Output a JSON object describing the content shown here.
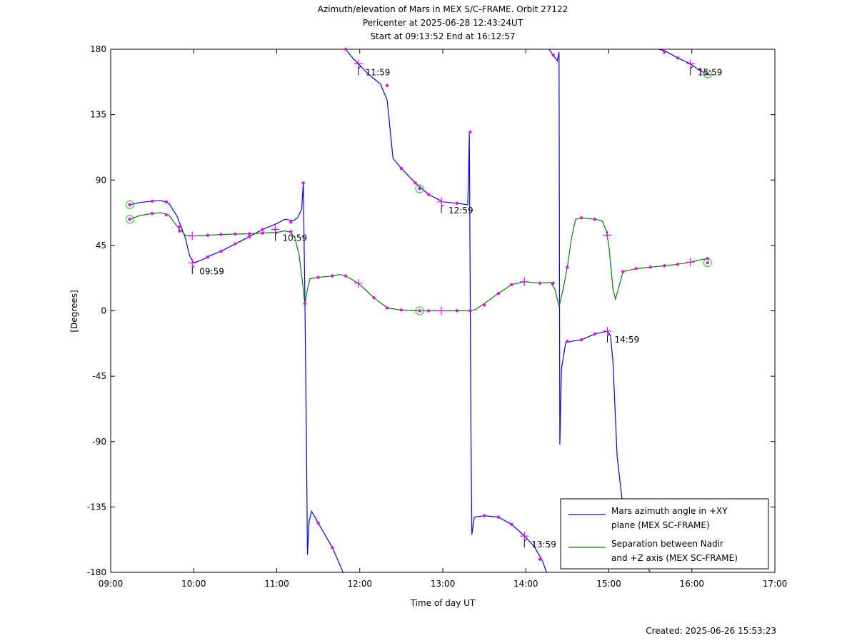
{
  "chart_data": {
    "type": "line",
    "title": [
      "Azimuth/elevation of Mars in MEX S/C-FRAME.  Orbit 27122",
      "Pericenter at 2025-06-28 12:43:24UT",
      "Start at 09:13:52 End at 16:12:57"
    ],
    "xlabel": "Time of day UT",
    "ylabel": "[Degrees]",
    "xlim": [
      9.0,
      17.0
    ],
    "ylim": [
      -180,
      180
    ],
    "x_ticks": [
      9,
      10,
      11,
      12,
      13,
      14,
      15,
      16,
      17
    ],
    "x_tick_labels": [
      "09:00",
      "10:00",
      "11:00",
      "12:00",
      "13:00",
      "14:00",
      "15:00",
      "16:00",
      "17:00"
    ],
    "y_ticks": [
      180,
      135,
      90,
      45,
      0,
      -45,
      -90,
      -135,
      -180
    ],
    "y_tick_labels": [
      "180",
      "135",
      "90",
      "45",
      "0",
      "-45",
      "-90",
      "-135",
      "-180"
    ],
    "grid": false,
    "legend_position": "bottom-right",
    "series": [
      {
        "name": "Mars azimuth angle in +XY plane (MEX SC-FRAME)",
        "legend_lines": [
          "Mars azimuth angle in +XY",
          "plane (MEX SC-FRAME)"
        ],
        "color": "#0000ff",
        "segments": [
          [
            [
              9.23,
              73
            ],
            [
              9.35,
              74.5
            ],
            [
              9.5,
              75.5
            ],
            [
              9.6,
              76
            ],
            [
              9.7,
              74
            ],
            [
              9.8,
              65
            ],
            [
              9.9,
              50
            ],
            [
              9.95,
              38
            ],
            [
              10.0,
              33
            ],
            [
              10.1,
              35
            ],
            [
              10.2,
              38
            ],
            [
              10.33,
              41
            ],
            [
              10.5,
              46
            ],
            [
              10.67,
              51
            ],
            [
              10.83,
              56
            ],
            [
              11.0,
              60
            ],
            [
              11.1,
              63
            ],
            [
              11.2,
              62
            ],
            [
              11.25,
              64
            ],
            [
              11.3,
              70
            ],
            [
              11.32,
              88
            ],
            [
              11.34,
              5
            ],
            [
              11.36,
              -100
            ],
            [
              11.37,
              -168
            ],
            [
              11.39,
              -145
            ],
            [
              11.42,
              -138
            ],
            [
              11.5,
              -146
            ],
            [
              11.67,
              -163
            ],
            [
              11.8,
              -180
            ]
          ],
          [
            [
              11.83,
              180
            ],
            [
              11.9,
              175
            ],
            [
              11.983,
              170
            ],
            [
              12.1,
              163
            ],
            [
              12.25,
              156
            ],
            [
              12.33,
              145
            ],
            [
              12.4,
              105
            ],
            [
              12.5,
              98
            ],
            [
              12.67,
              88
            ],
            [
              12.83,
              80
            ],
            [
              13.0,
              75
            ],
            [
              13.17,
              74
            ],
            [
              13.3,
              73
            ],
            [
              13.31,
              90
            ],
            [
              13.32,
              123
            ],
            [
              13.34,
              -85
            ],
            [
              13.35,
              -154
            ],
            [
              13.38,
              -142
            ],
            [
              13.5,
              -141
            ],
            [
              13.67,
              -142
            ],
            [
              13.83,
              -147
            ],
            [
              13.983,
              -155
            ],
            [
              14.1,
              -162
            ],
            [
              14.2,
              -172
            ],
            [
              14.25,
              -180
            ]
          ],
          [
            [
              14.28,
              180
            ],
            [
              14.33,
              176
            ],
            [
              14.38,
              172
            ],
            [
              14.4,
              178
            ],
            [
              14.41,
              -92
            ],
            [
              14.43,
              -40
            ],
            [
              14.48,
              -22
            ],
            [
              14.55,
              -21
            ],
            [
              14.67,
              -20
            ],
            [
              14.83,
              -16
            ],
            [
              14.983,
              -14
            ],
            [
              15.02,
              -17
            ],
            [
              15.05,
              -35
            ],
            [
              15.1,
              -100
            ],
            [
              15.2,
              -150
            ],
            [
              15.5,
              -180
            ]
          ],
          [
            [
              15.6,
              180
            ],
            [
              15.67,
              179
            ],
            [
              15.83,
              174
            ],
            [
              15.983,
              170
            ],
            [
              16.1,
              165
            ],
            [
              16.19,
              163
            ]
          ]
        ]
      },
      {
        "name": "Separation between Nadir and +Z axis (MEX SC-FRAME)",
        "legend_lines": [
          "Separation between Nadir",
          "and +Z axis (MEX SC-FRAME)"
        ],
        "color": "#008000",
        "segments": [
          [
            [
              9.23,
              63
            ],
            [
              9.35,
              65.5
            ],
            [
              9.5,
              67
            ],
            [
              9.6,
              67.5
            ],
            [
              9.7,
              66
            ],
            [
              9.8,
              58
            ],
            [
              9.9,
              52
            ],
            [
              10.0,
              51.5
            ],
            [
              10.17,
              52
            ],
            [
              10.33,
              52.5
            ],
            [
              10.5,
              52.8
            ],
            [
              10.67,
              53
            ],
            [
              10.83,
              53.5
            ],
            [
              11.0,
              54
            ],
            [
              11.1,
              55
            ],
            [
              11.17,
              54
            ],
            [
              11.22,
              50
            ],
            [
              11.27,
              38
            ],
            [
              11.32,
              15
            ],
            [
              11.34,
              4
            ],
            [
              11.36,
              12
            ],
            [
              11.4,
              22
            ],
            [
              11.5,
              23
            ],
            [
              11.67,
              24
            ],
            [
              11.75,
              25
            ],
            [
              11.83,
              24
            ],
            [
              11.983,
              19
            ],
            [
              12.17,
              9
            ],
            [
              12.33,
              2
            ],
            [
              12.5,
              0.5
            ],
            [
              12.67,
              0
            ],
            [
              12.83,
              0
            ],
            [
              13.0,
              0
            ],
            [
              13.17,
              0
            ],
            [
              13.33,
              0
            ],
            [
              13.4,
              1
            ],
            [
              13.5,
              5
            ],
            [
              13.67,
              12
            ],
            [
              13.83,
              18
            ],
            [
              13.983,
              20
            ],
            [
              14.17,
              19
            ],
            [
              14.3,
              19.5
            ],
            [
              14.35,
              15
            ],
            [
              14.4,
              3
            ],
            [
              14.45,
              15
            ],
            [
              14.5,
              30
            ],
            [
              14.55,
              50
            ],
            [
              14.6,
              63
            ],
            [
              14.67,
              64
            ],
            [
              14.83,
              63
            ],
            [
              14.92,
              62
            ],
            [
              14.97,
              55
            ],
            [
              15.0,
              45
            ],
            [
              15.05,
              15
            ],
            [
              15.08,
              8
            ],
            [
              15.12,
              16
            ],
            [
              15.17,
              27
            ],
            [
              15.33,
              29
            ],
            [
              15.5,
              30
            ],
            [
              15.67,
              31
            ],
            [
              15.83,
              32
            ],
            [
              15.983,
              33.5
            ],
            [
              16.1,
              35
            ],
            [
              16.19,
              36
            ]
          ]
        ]
      }
    ],
    "markers": {
      "color": "#ff00ff",
      "dots": [
        [
          9.23,
          73
        ],
        [
          9.5,
          75.5
        ],
        [
          9.67,
          75
        ],
        [
          9.83,
          58
        ],
        [
          10.17,
          37
        ],
        [
          10.33,
          41
        ],
        [
          10.5,
          46
        ],
        [
          10.67,
          51
        ],
        [
          10.83,
          56
        ],
        [
          11.17,
          61
        ],
        [
          11.32,
          88
        ],
        [
          11.34,
          5
        ],
        [
          11.5,
          -146
        ],
        [
          11.67,
          -163
        ],
        [
          11.83,
          180
        ],
        [
          12.33,
          155
        ],
        [
          12.5,
          98
        ],
        [
          12.67,
          88
        ],
        [
          12.83,
          80
        ],
        [
          13.17,
          74
        ],
        [
          13.33,
          123
        ],
        [
          13.5,
          -141
        ],
        [
          13.67,
          -142
        ],
        [
          13.83,
          -147
        ],
        [
          14.17,
          -171
        ],
        [
          14.33,
          176
        ],
        [
          14.5,
          -21
        ],
        [
          14.67,
          -20
        ],
        [
          14.83,
          -16
        ],
        [
          15.67,
          178
        ],
        [
          15.83,
          174
        ],
        [
          16.1,
          166
        ],
        [
          9.23,
          63
        ],
        [
          9.5,
          67
        ],
        [
          9.67,
          66
        ],
        [
          9.83,
          55
        ],
        [
          10.17,
          52
        ],
        [
          10.33,
          52.5
        ],
        [
          10.5,
          52.8
        ],
        [
          10.67,
          53
        ],
        [
          10.83,
          53.5
        ],
        [
          11.17,
          54.5
        ],
        [
          11.5,
          23
        ],
        [
          11.67,
          24
        ],
        [
          11.83,
          24
        ],
        [
          12.17,
          9
        ],
        [
          12.33,
          2
        ],
        [
          12.5,
          0.5
        ],
        [
          12.83,
          0
        ],
        [
          13.17,
          0
        ],
        [
          13.33,
          0
        ],
        [
          13.5,
          4
        ],
        [
          13.67,
          12
        ],
        [
          13.83,
          18
        ],
        [
          14.17,
          19
        ],
        [
          14.33,
          19
        ],
        [
          14.5,
          30
        ],
        [
          14.67,
          64
        ],
        [
          14.83,
          63
        ],
        [
          15.17,
          27
        ],
        [
          15.33,
          29
        ],
        [
          15.5,
          30
        ],
        [
          15.67,
          31
        ],
        [
          15.83,
          32
        ],
        [
          16.19,
          36
        ]
      ],
      "hour_crosses": [
        [
          9.983,
          33
        ],
        [
          9.983,
          51.5
        ],
        [
          10.983,
          56
        ],
        [
          10.983,
          56
        ],
        [
          11.983,
          170
        ],
        [
          11.983,
          19
        ],
        [
          12.983,
          75
        ],
        [
          12.983,
          0
        ],
        [
          13.983,
          -155
        ],
        [
          13.983,
          20
        ],
        [
          14.983,
          -14
        ],
        [
          14.983,
          52
        ],
        [
          15.983,
          170
        ],
        [
          15.983,
          33.5
        ]
      ],
      "circles": [
        [
          9.23,
          73
        ],
        [
          9.23,
          63
        ],
        [
          12.72,
          84
        ],
        [
          12.72,
          0
        ],
        [
          16.19,
          163
        ],
        [
          16.19,
          33
        ]
      ]
    },
    "annotations": [
      {
        "text": "09:59",
        "x": 9.983,
        "y": 33
      },
      {
        "text": "10:59",
        "x": 10.983,
        "y": 56
      },
      {
        "text": "11:59",
        "x": 11.983,
        "y": 170
      },
      {
        "text": "12:59",
        "x": 12.983,
        "y": 75
      },
      {
        "text": "13:59",
        "x": 13.983,
        "y": -155
      },
      {
        "text": "14:59",
        "x": 14.983,
        "y": -14
      },
      {
        "text": "15:59",
        "x": 15.983,
        "y": 170
      }
    ],
    "created": "Created: 2025-06-26 15:53:23"
  }
}
